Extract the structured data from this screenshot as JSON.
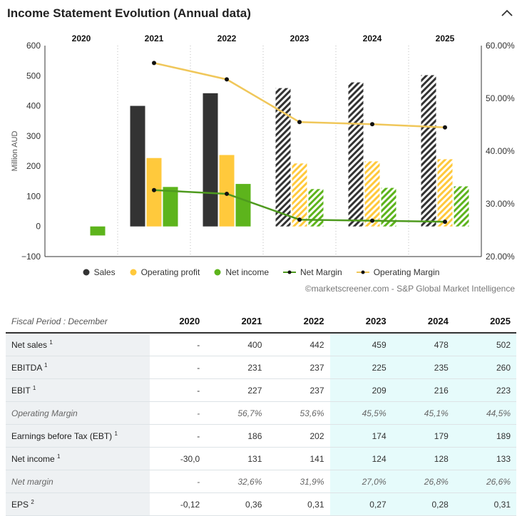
{
  "title": "Income Statement Evolution (Annual data)",
  "source": "©marketscreener.com - S&P Global Market Intelligence",
  "chart_data": {
    "type": "bar",
    "categories": [
      "2020",
      "2021",
      "2022",
      "2023",
      "2024",
      "2025"
    ],
    "estimate_from_index": 3,
    "ylabel": "Million AUD",
    "ylim": [
      -100,
      600
    ],
    "yticks": [
      "600",
      "500",
      "400",
      "300",
      "200",
      "100",
      "0",
      "−100"
    ],
    "y2lim": [
      20,
      60
    ],
    "y2ticks": [
      "60.00%",
      "50.00%",
      "40.00%",
      "30.00%",
      "20.00%"
    ],
    "series": [
      {
        "name": "Sales",
        "kind": "bar",
        "color": "#333333",
        "values": [
          null,
          400,
          442,
          459,
          478,
          502
        ]
      },
      {
        "name": "Operating profit",
        "kind": "bar",
        "color": "#ffc93c",
        "values": [
          null,
          227,
          237,
          209,
          216,
          223
        ]
      },
      {
        "name": "Net income",
        "kind": "bar",
        "color": "#5db41c",
        "values": [
          -30,
          131,
          141,
          124,
          128,
          133
        ]
      },
      {
        "name": "Net Margin",
        "kind": "line",
        "axis": "right",
        "color": "#4e9a1e",
        "values": [
          null,
          32.6,
          31.9,
          27.0,
          26.8,
          26.6
        ]
      },
      {
        "name": "Operating Margin",
        "kind": "line",
        "axis": "right",
        "color": "#f0c75a",
        "values": [
          null,
          56.7,
          53.6,
          45.5,
          45.1,
          44.5
        ]
      }
    ],
    "legend_position": "bottom"
  },
  "table": {
    "period_label": "Fiscal Period : December",
    "years": [
      "2020",
      "2021",
      "2022",
      "2023",
      "2024",
      "2025"
    ],
    "rows": [
      {
        "label": "Net sales",
        "sup": "1",
        "italic": false,
        "values": [
          "-",
          "400",
          "442",
          "459",
          "478",
          "502"
        ]
      },
      {
        "label": "EBITDA",
        "sup": "1",
        "italic": false,
        "values": [
          "-",
          "231",
          "237",
          "225",
          "235",
          "260"
        ]
      },
      {
        "label": "EBIT",
        "sup": "1",
        "italic": false,
        "values": [
          "-",
          "227",
          "237",
          "209",
          "216",
          "223"
        ]
      },
      {
        "label": "Operating Margin",
        "sup": "",
        "italic": true,
        "values": [
          "-",
          "56,7%",
          "53,6%",
          "45,5%",
          "45,1%",
          "44,5%"
        ]
      },
      {
        "label": "Earnings before Tax (EBT)",
        "sup": "1",
        "italic": false,
        "values": [
          "-",
          "186",
          "202",
          "174",
          "179",
          "189"
        ]
      },
      {
        "label": "Net income",
        "sup": "1",
        "italic": false,
        "values": [
          "-30,0",
          "131",
          "141",
          "124",
          "128",
          "133"
        ]
      },
      {
        "label": "Net margin",
        "sup": "",
        "italic": true,
        "values": [
          "-",
          "32,6%",
          "31,9%",
          "27,0%",
          "26,8%",
          "26,6%"
        ]
      },
      {
        "label": "EPS",
        "sup": "2",
        "italic": false,
        "values": [
          "-0,12",
          "0,36",
          "0,31",
          "0,27",
          "0,28",
          "0,31"
        ]
      }
    ]
  }
}
